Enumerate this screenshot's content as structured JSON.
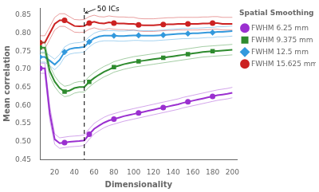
{
  "chart_data": {
    "type": "line",
    "xlabel": "Dimensionality",
    "ylabel": "Mean correlation",
    "x": [
      5,
      10,
      15,
      20,
      25,
      30,
      35,
      40,
      45,
      50,
      55,
      60,
      65,
      70,
      75,
      80,
      85,
      90,
      95,
      100,
      105,
      110,
      115,
      120,
      125,
      130,
      135,
      140,
      145,
      150,
      155,
      160,
      165,
      170,
      175,
      180,
      185,
      190,
      195,
      200
    ],
    "series": [
      {
        "name": "FWHM 6.25 mm",
        "color": "#9B30D0",
        "marker": "circle",
        "values": [
          0.703,
          0.703,
          0.578,
          0.506,
          0.495,
          0.497,
          0.499,
          0.5,
          0.501,
          0.503,
          0.52,
          0.535,
          0.544,
          0.552,
          0.558,
          0.562,
          0.566,
          0.57,
          0.573,
          0.576,
          0.579,
          0.582,
          0.585,
          0.588,
          0.591,
          0.594,
          0.597,
          0.6,
          0.603,
          0.607,
          0.61,
          0.613,
          0.616,
          0.619,
          0.622,
          0.625,
          0.628,
          0.63,
          0.632,
          0.635
        ],
        "upper": [
          0.717,
          0.717,
          0.597,
          0.521,
          0.51,
          0.512,
          0.514,
          0.515,
          0.516,
          0.518,
          0.535,
          0.55,
          0.559,
          0.567,
          0.573,
          0.577,
          0.581,
          0.585,
          0.588,
          0.591,
          0.594,
          0.597,
          0.6,
          0.603,
          0.606,
          0.609,
          0.612,
          0.615,
          0.618,
          0.622,
          0.625,
          0.628,
          0.631,
          0.634,
          0.637,
          0.64,
          0.643,
          0.645,
          0.647,
          0.65
        ],
        "lower": [
          0.689,
          0.689,
          0.56,
          0.492,
          0.481,
          0.483,
          0.485,
          0.486,
          0.487,
          0.489,
          0.506,
          0.521,
          0.53,
          0.538,
          0.544,
          0.548,
          0.552,
          0.556,
          0.559,
          0.562,
          0.565,
          0.568,
          0.571,
          0.574,
          0.577,
          0.58,
          0.583,
          0.586,
          0.589,
          0.593,
          0.596,
          0.599,
          0.602,
          0.605,
          0.608,
          0.611,
          0.614,
          0.616,
          0.618,
          0.621
        ]
      },
      {
        "name": "FWHM 9.375 mm",
        "color": "#2E8B2E",
        "marker": "square",
        "values": [
          0.76,
          0.76,
          0.695,
          0.666,
          0.648,
          0.638,
          0.641,
          0.648,
          0.651,
          0.651,
          0.665,
          0.676,
          0.685,
          0.693,
          0.699,
          0.706,
          0.71,
          0.714,
          0.717,
          0.72,
          0.722,
          0.724,
          0.726,
          0.728,
          0.73,
          0.732,
          0.734,
          0.736,
          0.738,
          0.74,
          0.742,
          0.744,
          0.746,
          0.748,
          0.749,
          0.75,
          0.751,
          0.752,
          0.753,
          0.754
        ],
        "upper": [
          0.775,
          0.775,
          0.71,
          0.681,
          0.663,
          0.653,
          0.656,
          0.663,
          0.666,
          0.666,
          0.68,
          0.691,
          0.7,
          0.708,
          0.714,
          0.721,
          0.725,
          0.729,
          0.732,
          0.735,
          0.737,
          0.739,
          0.741,
          0.743,
          0.745,
          0.747,
          0.749,
          0.751,
          0.753,
          0.755,
          0.757,
          0.759,
          0.761,
          0.763,
          0.764,
          0.765,
          0.766,
          0.767,
          0.768,
          0.769
        ],
        "lower": [
          0.745,
          0.745,
          0.68,
          0.652,
          0.634,
          0.624,
          0.627,
          0.634,
          0.637,
          0.637,
          0.651,
          0.662,
          0.671,
          0.679,
          0.685,
          0.692,
          0.696,
          0.7,
          0.703,
          0.706,
          0.708,
          0.71,
          0.712,
          0.714,
          0.716,
          0.718,
          0.72,
          0.722,
          0.724,
          0.726,
          0.728,
          0.73,
          0.732,
          0.734,
          0.735,
          0.736,
          0.737,
          0.738,
          0.739,
          0.74
        ]
      },
      {
        "name": "FWHM 12.5 mm",
        "color": "#3399DD",
        "marker": "diamond",
        "values": [
          0.734,
          0.734,
          0.724,
          0.713,
          0.726,
          0.748,
          0.756,
          0.759,
          0.76,
          0.762,
          0.776,
          0.786,
          0.791,
          0.793,
          0.793,
          0.793,
          0.792,
          0.792,
          0.793,
          0.794,
          0.794,
          0.793,
          0.793,
          0.793,
          0.794,
          0.795,
          0.796,
          0.797,
          0.798,
          0.799,
          0.799,
          0.8,
          0.8,
          0.801,
          0.802,
          0.802,
          0.804,
          0.804,
          0.805,
          0.806
        ],
        "upper": [
          0.748,
          0.748,
          0.738,
          0.728,
          0.741,
          0.762,
          0.77,
          0.773,
          0.774,
          0.777,
          0.79,
          0.8,
          0.805,
          0.807,
          0.807,
          0.807,
          0.806,
          0.806,
          0.807,
          0.808,
          0.808,
          0.807,
          0.807,
          0.807,
          0.808,
          0.809,
          0.81,
          0.811,
          0.812,
          0.813,
          0.813,
          0.814,
          0.814,
          0.815,
          0.816,
          0.816,
          0.818,
          0.818,
          0.819,
          0.82
        ],
        "lower": [
          0.72,
          0.72,
          0.71,
          0.699,
          0.712,
          0.734,
          0.742,
          0.745,
          0.746,
          0.748,
          0.762,
          0.772,
          0.777,
          0.779,
          0.779,
          0.779,
          0.778,
          0.778,
          0.779,
          0.78,
          0.78,
          0.779,
          0.779,
          0.779,
          0.78,
          0.781,
          0.782,
          0.783,
          0.784,
          0.785,
          0.785,
          0.786,
          0.786,
          0.787,
          0.788,
          0.788,
          0.79,
          0.79,
          0.791,
          0.792
        ]
      },
      {
        "name": "FWHM 15.625 mm",
        "color": "#CC2222",
        "marker": "circle",
        "values": [
          0.774,
          0.774,
          0.8,
          0.826,
          0.836,
          0.836,
          0.828,
          0.82,
          0.819,
          0.82,
          0.828,
          0.832,
          0.828,
          0.827,
          0.83,
          0.828,
          0.827,
          0.827,
          0.826,
          0.826,
          0.823,
          0.822,
          0.822,
          0.822,
          0.823,
          0.824,
          0.825,
          0.825,
          0.826,
          0.826,
          0.826,
          0.826,
          0.826,
          0.827,
          0.827,
          0.828,
          0.828,
          0.826,
          0.826,
          0.826
        ],
        "upper": [
          0.793,
          0.793,
          0.818,
          0.844,
          0.854,
          0.854,
          0.846,
          0.838,
          0.837,
          0.838,
          0.846,
          0.85,
          0.846,
          0.845,
          0.848,
          0.846,
          0.845,
          0.845,
          0.844,
          0.844,
          0.841,
          0.84,
          0.84,
          0.84,
          0.841,
          0.842,
          0.843,
          0.843,
          0.844,
          0.844,
          0.844,
          0.844,
          0.844,
          0.845,
          0.845,
          0.846,
          0.846,
          0.844,
          0.844,
          0.844
        ],
        "lower": [
          0.757,
          0.757,
          0.783,
          0.809,
          0.819,
          0.819,
          0.811,
          0.803,
          0.802,
          0.803,
          0.811,
          0.815,
          0.811,
          0.81,
          0.813,
          0.811,
          0.81,
          0.81,
          0.809,
          0.809,
          0.806,
          0.805,
          0.805,
          0.805,
          0.806,
          0.807,
          0.808,
          0.808,
          0.809,
          0.809,
          0.809,
          0.809,
          0.809,
          0.81,
          0.81,
          0.811,
          0.811,
          0.809,
          0.809,
          0.809
        ]
      }
    ],
    "annotations": [
      {
        "x": 50,
        "y": 0.856,
        "text": "50 ICs"
      }
    ],
    "xlim": [
      5,
      205
    ],
    "xticks": [
      20,
      40,
      60,
      80,
      100,
      120,
      140,
      160,
      180,
      200
    ],
    "ylim": [
      0.45,
      0.87
    ],
    "yticks": [
      0.45,
      {
        "value": 0.5,
        "label": "0.50"
      },
      0.55,
      {
        "value": 0.6,
        "label": "0.60"
      },
      0.65,
      {
        "value": 0.7,
        "label": "0.70"
      },
      0.75,
      {
        "value": 0.8,
        "label": "0.80"
      },
      0.85
    ],
    "legend_title": "Spatial Smoothing",
    "legend": "right",
    "grid": false
  }
}
